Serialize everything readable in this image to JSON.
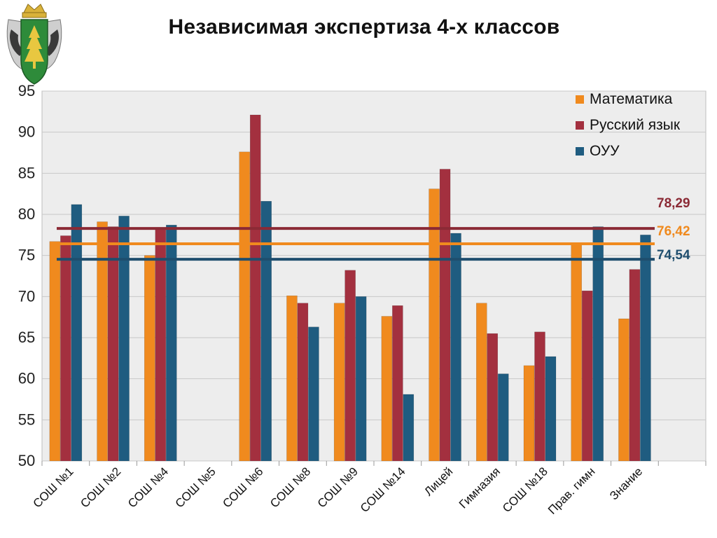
{
  "slide": {
    "title": "Независимая экспертиза 4-х классов"
  },
  "colors": {
    "math": "#F08A1E",
    "russian": "#A3303F",
    "ouu": "#1F5C80",
    "plot_bg": "#EDEDED",
    "avg_russian": "#8B2A35",
    "avg_math": "#F08A1E",
    "avg_ouu": "#1F4E6E"
  },
  "chart_data": {
    "type": "bar",
    "title": "Независимая экспертиза 4-х классов",
    "xlabel": "",
    "ylabel": "",
    "ylim": [
      50,
      95
    ],
    "y_ticks": [
      "50",
      "55",
      "60",
      "65",
      "70",
      "75",
      "80",
      "85",
      "90",
      "95"
    ],
    "grid": true,
    "legend_position": "top-right",
    "categories": [
      "СОШ №1",
      "СОШ №2",
      "СОШ №4",
      "СОШ №5",
      "СОШ №6",
      "СОШ №8",
      "СОШ №9",
      "СОШ №14",
      "Лицей",
      "Гимназия",
      "СОШ №18",
      "Прав. гимн",
      "Знание"
    ],
    "series": [
      {
        "name": "Математика",
        "values": [
          76.7,
          79.1,
          75.0,
          null,
          87.6,
          70.1,
          69.2,
          67.6,
          83.1,
          69.2,
          61.6,
          76.4,
          67.3
        ]
      },
      {
        "name": "Русский язык",
        "values": [
          77.4,
          78.5,
          78.3,
          null,
          92.1,
          69.2,
          73.2,
          68.9,
          85.5,
          65.5,
          65.7,
          70.7,
          73.3
        ]
      },
      {
        "name": "ОУУ",
        "values": [
          81.2,
          79.8,
          78.7,
          null,
          81.6,
          66.3,
          70.0,
          58.1,
          77.7,
          60.6,
          62.7,
          78.5,
          77.5
        ]
      }
    ],
    "reference_lines": [
      {
        "series": "Русский язык",
        "value": 78.29,
        "label": "78,29"
      },
      {
        "series": "Математика",
        "value": 76.42,
        "label": "76,42"
      },
      {
        "series": "ОУУ",
        "value": 74.54,
        "label": "74,54"
      }
    ]
  }
}
